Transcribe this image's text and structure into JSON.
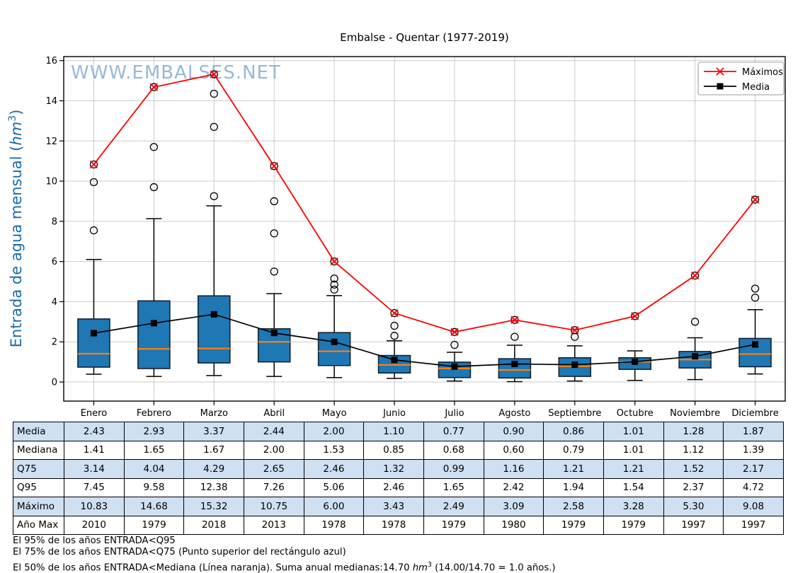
{
  "title": "Embalse - Quentar (1977-2019)",
  "watermark": "WWW.EMBALSES.NET",
  "y_axis_label": {
    "pre": "Entrada de agua mensual (",
    "unit": "hm",
    "sup": "3",
    "post": ")"
  },
  "legend": {
    "maximos": "Máximos",
    "media": "Media"
  },
  "chart_data": {
    "type": "boxplot_with_lines",
    "categories": [
      "Enero",
      "Febrero",
      "Marzo",
      "Abril",
      "Mayo",
      "Junio",
      "Julio",
      "Agosto",
      "Septiembre",
      "Octubre",
      "Noviembre",
      "Diciembre"
    ],
    "ylim": [
      -0.95,
      16.2
    ],
    "yticks": [
      0,
      2,
      4,
      6,
      8,
      10,
      12,
      14,
      16
    ],
    "grid": true,
    "legend_position": "upper right",
    "series": [
      {
        "name": "Máximos",
        "marker": "x",
        "color": "#ff0000",
        "values": [
          10.83,
          14.68,
          15.32,
          10.75,
          6.0,
          3.43,
          2.49,
          3.09,
          2.58,
          3.28,
          5.3,
          9.08
        ]
      },
      {
        "name": "Media",
        "marker": "square",
        "color": "#000000",
        "values": [
          2.43,
          2.93,
          3.37,
          2.44,
          2.0,
          1.1,
          0.77,
          0.9,
          0.86,
          1.01,
          1.28,
          1.87
        ]
      }
    ],
    "boxes": {
      "median": [
        1.41,
        1.65,
        1.67,
        2.0,
        1.53,
        0.85,
        0.68,
        0.6,
        0.79,
        1.01,
        1.12,
        1.39
      ],
      "q25": [
        0.74,
        0.67,
        0.95,
        1.0,
        0.82,
        0.45,
        0.22,
        0.2,
        0.28,
        0.63,
        0.7,
        0.76
      ],
      "q75": [
        3.14,
        4.04,
        4.29,
        2.65,
        2.46,
        1.32,
        0.99,
        1.16,
        1.21,
        1.21,
        1.52,
        2.17
      ],
      "whisker_low": [
        0.39,
        0.28,
        0.32,
        0.28,
        0.22,
        0.18,
        0.05,
        0.02,
        0.05,
        0.08,
        0.12,
        0.4
      ],
      "whisker_high": [
        6.1,
        8.13,
        8.77,
        4.4,
        4.3,
        2.05,
        1.48,
        1.83,
        1.8,
        1.55,
        2.2,
        3.6
      ],
      "outliers": [
        [
          7.55,
          9.95,
          10.83
        ],
        [
          9.7,
          11.7,
          14.68
        ],
        [
          9.25,
          12.7,
          14.35,
          15.32
        ],
        [
          5.5,
          7.4,
          9.0,
          10.75
        ],
        [
          4.6,
          4.85,
          5.15,
          6.0
        ],
        [
          2.3,
          2.8,
          3.43
        ],
        [
          1.85,
          2.49
        ],
        [
          2.25,
          3.09
        ],
        [
          2.25,
          2.58
        ],
        [
          3.28
        ],
        [
          3.0,
          5.3
        ],
        [
          4.2,
          4.65,
          9.08
        ]
      ]
    },
    "colors": {
      "box_fill": "#1f77b4",
      "box_edge": "#0e1c29",
      "median_line": "#ff7f0e",
      "max_line": "#ff0000",
      "mean_line": "#000000",
      "grid": "#cccccc",
      "watermark": "#8cb3d4",
      "ylabel": "#1b6ca8",
      "axis": "#000000"
    }
  },
  "table": {
    "row_labels": [
      "Media",
      "Mediana",
      "Q75",
      "Q95",
      "Máximo",
      "Año Max"
    ],
    "rows": [
      [
        "2.43",
        "2.93",
        "3.37",
        "2.44",
        "2.00",
        "1.10",
        "0.77",
        "0.90",
        "0.86",
        "1.01",
        "1.28",
        "1.87"
      ],
      [
        "1.41",
        "1.65",
        "1.67",
        "2.00",
        "1.53",
        "0.85",
        "0.68",
        "0.60",
        "0.79",
        "1.01",
        "1.12",
        "1.39"
      ],
      [
        "3.14",
        "4.04",
        "4.29",
        "2.65",
        "2.46",
        "1.32",
        "0.99",
        "1.16",
        "1.21",
        "1.21",
        "1.52",
        "2.17"
      ],
      [
        "7.45",
        "9.58",
        "12.38",
        "7.26",
        "5.06",
        "2.46",
        "1.65",
        "2.42",
        "1.94",
        "1.54",
        "2.37",
        "4.72"
      ],
      [
        "10.83",
        "14.68",
        "15.32",
        "10.75",
        "6.00",
        "3.43",
        "2.49",
        "3.09",
        "2.58",
        "3.28",
        "5.30",
        "9.08"
      ],
      [
        "2010",
        "1979",
        "2018",
        "2013",
        "1978",
        "1978",
        "1979",
        "1980",
        "1979",
        "1979",
        "1997",
        "1997"
      ]
    ],
    "header_fill": "#cfe0f3"
  },
  "footnotes": {
    "line1": "El 95% de los años ENTRADA<Q95",
    "line2": "El 75% de los años ENTRADA<Q75 (Punto superior del rectángulo azul)",
    "line3_pre": "El 50% de los años ENTRADA<Mediana (Línea naranja). Suma anual medianas:14.70 ",
    "line3_unit": "hm",
    "line3_sup": "3",
    "line3_post": " (14.00/14.70 = 1.0 años.)"
  }
}
